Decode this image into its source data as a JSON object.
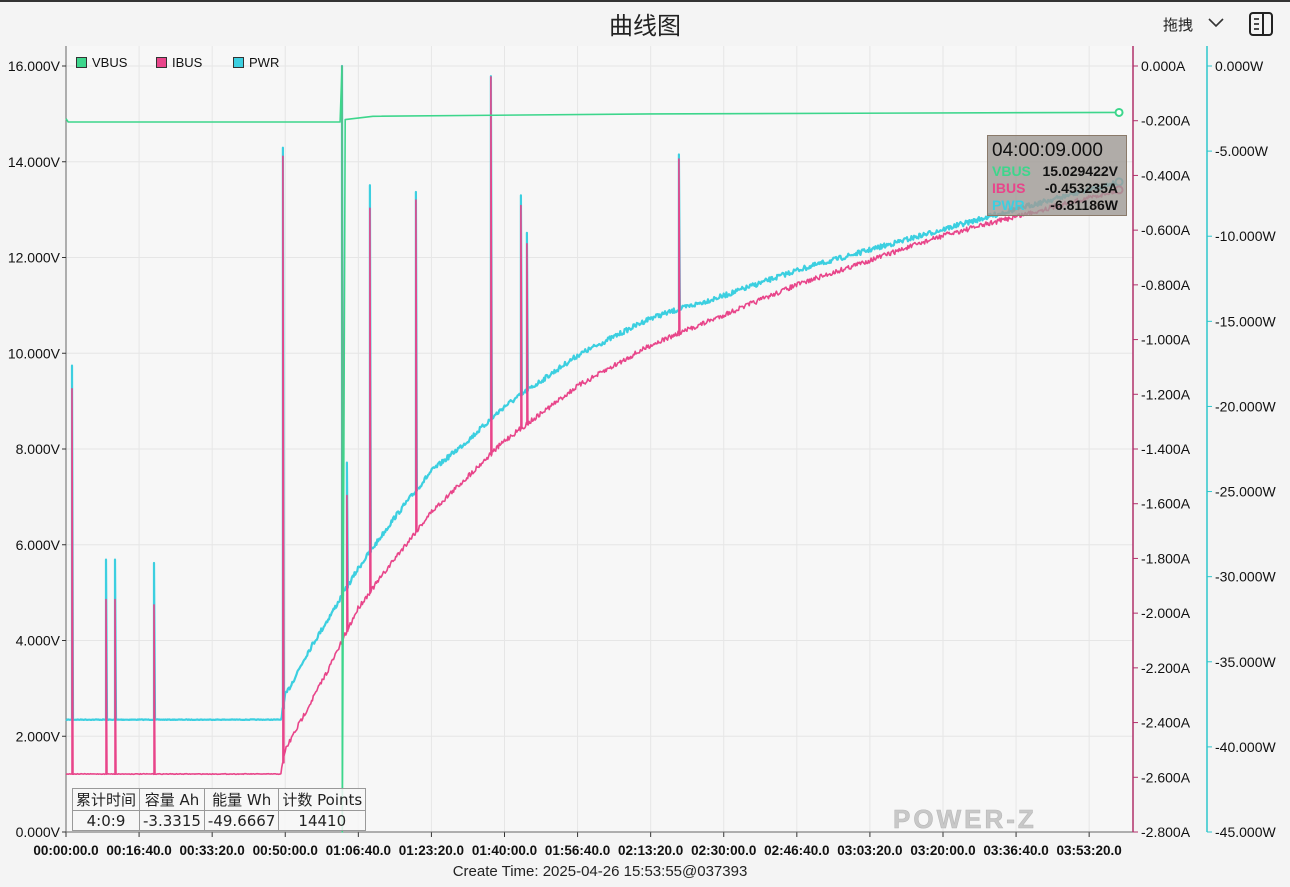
{
  "header": {
    "title": "曲线图",
    "mode_label": "拖拽",
    "icons": [
      "chevron-down-icon",
      "side-panel-icon"
    ]
  },
  "colors": {
    "VBUS": "#3dd68c",
    "IBUS": "#e8458a",
    "PWR": "#3ccfe0",
    "ibus_axis": "#b0306a",
    "pwr_axis": "#2cc6cc"
  },
  "legend": [
    {
      "label": "VBUS"
    },
    {
      "label": "IBUS"
    },
    {
      "label": "PWR"
    }
  ],
  "tooltip": {
    "time": "04:00:09.000",
    "rows": [
      {
        "label": "VBUS",
        "value": "15.029422V"
      },
      {
        "label": "IBUS",
        "value": "-0.453235A"
      },
      {
        "label": "PWR",
        "value": "-6.81186W"
      }
    ]
  },
  "stats": {
    "headers": [
      "累计时间",
      "容量 Ah",
      "能量 Wh",
      "计数 Points"
    ],
    "values": [
      "4:0:9",
      "-3.3315",
      "-49.6667",
      "14410"
    ]
  },
  "watermark": "POWER-Z",
  "create_time": "Create Time: 2025-04-26 15:53:55@037393",
  "chart_data": {
    "type": "line",
    "xlabel": "",
    "grid": true,
    "legend_position": "top-left",
    "xlim": [
      "00:00:00",
      "04:03:20"
    ],
    "x_ticks": [
      "00:00:00.0",
      "00:16:40.0",
      "00:33:20.0",
      "00:50:00.0",
      "01:06:40.0",
      "01:23:20.0",
      "01:40:00.0",
      "01:56:40.0",
      "02:13:20.0",
      "02:30:00.0",
      "02:46:40.0",
      "03:03:20.0",
      "03:20:00.0",
      "03:36:40.0",
      "03:53:20.0"
    ],
    "axes": {
      "VBUS": {
        "ylim": [
          0,
          16
        ],
        "step": 2,
        "unit": "V",
        "decimals": 3,
        "side": "left"
      },
      "IBUS": {
        "ylim": [
          -2.8,
          0
        ],
        "step": 0.2,
        "unit": "A",
        "decimals": 3,
        "side": "right"
      },
      "PWR": {
        "ylim": [
          -45,
          0
        ],
        "step": 5,
        "unit": "W",
        "decimals": 3,
        "side": "right-outer"
      }
    },
    "series": [
      {
        "name": "VBUS",
        "points": [
          [
            "00:00:00",
            14.9
          ],
          [
            "00:00:30",
            14.83
          ],
          [
            "01:02:30",
            14.83
          ],
          [
            "01:02:56",
            16.0
          ],
          [
            "01:03:00",
            0.0
          ],
          [
            "01:03:40",
            14.88
          ],
          [
            "01:10:00",
            14.95
          ],
          [
            "02:13:20",
            15.0
          ],
          [
            "04:00:09",
            15.03
          ]
        ]
      },
      {
        "name": "IBUS",
        "points": [
          [
            "00:00:00",
            -2.588
          ],
          [
            "00:49:00",
            -2.588
          ],
          [
            "00:50:00",
            -2.5
          ],
          [
            "00:55:00",
            -2.35
          ],
          [
            "01:00:00",
            -2.2
          ],
          [
            "01:06:40",
            -1.98
          ],
          [
            "01:15:00",
            -1.8
          ],
          [
            "01:23:20",
            -1.63
          ],
          [
            "01:31:40",
            -1.5
          ],
          [
            "01:40:00",
            -1.37
          ],
          [
            "01:56:40",
            -1.17
          ],
          [
            "02:13:20",
            -1.02
          ],
          [
            "02:30:00",
            -0.91
          ],
          [
            "02:46:40",
            -0.8
          ],
          [
            "03:03:20",
            -0.71
          ],
          [
            "03:20:00",
            -0.62
          ],
          [
            "03:36:40",
            -0.55
          ],
          [
            "04:00:09",
            -0.453
          ]
        ]
      },
      {
        "name": "PWR",
        "points": [
          [
            "00:00:00",
            -38.4
          ],
          [
            "00:49:00",
            -38.4
          ],
          [
            "00:50:00",
            -37
          ],
          [
            "00:55:00",
            -34.5
          ],
          [
            "01:00:00",
            -32.4
          ],
          [
            "01:06:40",
            -29.5
          ],
          [
            "01:15:00",
            -26.5
          ],
          [
            "01:23:20",
            -23.8
          ],
          [
            "01:31:40",
            -22
          ],
          [
            "01:40:00",
            -20
          ],
          [
            "01:56:40",
            -17
          ],
          [
            "02:13:20",
            -14.8
          ],
          [
            "02:30:00",
            -13.5
          ],
          [
            "02:46:40",
            -12
          ],
          [
            "03:03:20",
            -10.8
          ],
          [
            "03:20:00",
            -9.6
          ],
          [
            "03:36:40",
            -8.4
          ],
          [
            "04:00:09",
            -6.81
          ]
        ]
      }
    ],
    "spikes": [
      {
        "t": "00:01:22",
        "IBUS": -1.18,
        "PWR": -17.6
      },
      {
        "t": "00:09:07",
        "IBUS": -1.95,
        "PWR": -29.0
      },
      {
        "t": "00:11:10",
        "IBUS": -1.95,
        "PWR": -29.0
      },
      {
        "t": "00:20:04",
        "IBUS": -1.97,
        "PWR": -29.2
      },
      {
        "t": "00:49:28",
        "IBUS": -0.33,
        "PWR": -4.8
      },
      {
        "t": "01:02:56",
        "IBUS": 0.0,
        "PWR": 0.0
      },
      {
        "t": "01:04:04",
        "IBUS": -1.57,
        "PWR": -23.3
      },
      {
        "t": "01:09:19",
        "IBUS": -0.52,
        "PWR": -7.0
      },
      {
        "t": "01:19:48",
        "IBUS": -0.49,
        "PWR": -7.4
      },
      {
        "t": "01:36:54",
        "IBUS": -0.04,
        "PWR": -0.6
      },
      {
        "t": "01:43:44",
        "IBUS": -0.51,
        "PWR": -7.6
      },
      {
        "t": "01:45:06",
        "IBUS": -0.65,
        "PWR": -9.8
      },
      {
        "t": "02:19:46",
        "IBUS": -0.34,
        "PWR": -5.2
      }
    ]
  }
}
